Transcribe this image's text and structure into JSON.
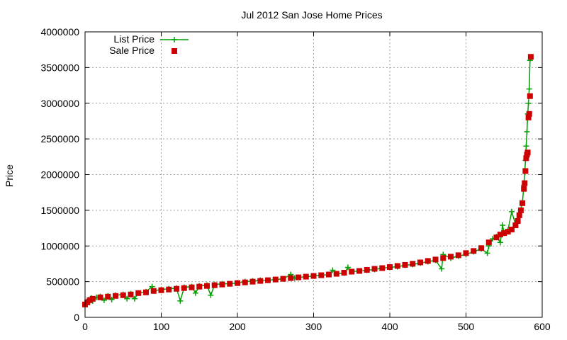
{
  "chart_data": {
    "type": "scatter",
    "title": "Jul 2012 San Jose Home Prices",
    "xlabel": "",
    "ylabel": "Price",
    "xlim": [
      0,
      600
    ],
    "ylim": [
      0,
      4000000
    ],
    "x_ticks": [
      0,
      100,
      200,
      300,
      400,
      500,
      600
    ],
    "y_ticks": [
      0,
      500000,
      1000000,
      1500000,
      2000000,
      2500000,
      3000000,
      3500000,
      4000000
    ],
    "x_tick_labels": [
      "0",
      "100",
      "200",
      "300",
      "400",
      "500",
      "600"
    ],
    "y_tick_labels": [
      "0",
      "500000",
      "1000000",
      "1500000",
      "2000000",
      "2500000",
      "3000000",
      "3500000",
      "4000000"
    ],
    "grid": true,
    "legend_position": "top-left",
    "series": [
      {
        "name": "List Price",
        "style": "linespoints-plus",
        "color": "#00a000",
        "points": [
          [
            0,
            180000
          ],
          [
            2,
            210000
          ],
          [
            5,
            250000
          ],
          [
            8,
            270000
          ],
          [
            10,
            230000
          ],
          [
            15,
            280000
          ],
          [
            20,
            290000
          ],
          [
            25,
            240000
          ],
          [
            30,
            300000
          ],
          [
            35,
            250000
          ],
          [
            40,
            310000
          ],
          [
            50,
            320000
          ],
          [
            55,
            260000
          ],
          [
            60,
            330000
          ],
          [
            65,
            260000
          ],
          [
            70,
            340000
          ],
          [
            80,
            360000
          ],
          [
            88,
            430000
          ],
          [
            90,
            370000
          ],
          [
            100,
            390000
          ],
          [
            110,
            400000
          ],
          [
            120,
            410000
          ],
          [
            125,
            230000
          ],
          [
            130,
            420000
          ],
          [
            140,
            430000
          ],
          [
            145,
            340000
          ],
          [
            150,
            440000
          ],
          [
            160,
            450000
          ],
          [
            165,
            310000
          ],
          [
            170,
            460000
          ],
          [
            180,
            470000
          ],
          [
            190,
            470000
          ],
          [
            200,
            480000
          ],
          [
            210,
            500000
          ],
          [
            220,
            510000
          ],
          [
            230,
            520000
          ],
          [
            240,
            520000
          ],
          [
            250,
            530000
          ],
          [
            260,
            540000
          ],
          [
            270,
            600000
          ],
          [
            275,
            550000
          ],
          [
            280,
            560000
          ],
          [
            290,
            570000
          ],
          [
            300,
            580000
          ],
          [
            310,
            590000
          ],
          [
            320,
            600000
          ],
          [
            325,
            660000
          ],
          [
            330,
            610000
          ],
          [
            340,
            620000
          ],
          [
            345,
            700000
          ],
          [
            350,
            640000
          ],
          [
            360,
            650000
          ],
          [
            370,
            660000
          ],
          [
            380,
            670000
          ],
          [
            390,
            690000
          ],
          [
            400,
            700000
          ],
          [
            410,
            710000
          ],
          [
            420,
            730000
          ],
          [
            430,
            740000
          ],
          [
            440,
            760000
          ],
          [
            450,
            780000
          ],
          [
            460,
            800000
          ],
          [
            468,
            680000
          ],
          [
            470,
            880000
          ],
          [
            480,
            830000
          ],
          [
            490,
            860000
          ],
          [
            500,
            880000
          ],
          [
            510,
            920000
          ],
          [
            520,
            960000
          ],
          [
            528,
            900000
          ],
          [
            530,
            1000000
          ],
          [
            535,
            1100000
          ],
          [
            540,
            1130000
          ],
          [
            545,
            1050000
          ],
          [
            548,
            1290000
          ],
          [
            550,
            1180000
          ],
          [
            555,
            1220000
          ],
          [
            560,
            1480000
          ],
          [
            565,
            1300000
          ],
          [
            570,
            1460000
          ],
          [
            574,
            1600000
          ],
          [
            576,
            1850000
          ],
          [
            578,
            2200000
          ],
          [
            579,
            2400000
          ],
          [
            580,
            2600000
          ],
          [
            581,
            2850000
          ],
          [
            582,
            3000000
          ],
          [
            583,
            3200000
          ],
          [
            584,
            3600000
          ]
        ]
      },
      {
        "name": "Sale Price",
        "style": "points-square",
        "color": "#cc0000",
        "points": [
          [
            0,
            180000
          ],
          [
            3,
            210000
          ],
          [
            6,
            240000
          ],
          [
            10,
            260000
          ],
          [
            20,
            280000
          ],
          [
            30,
            290000
          ],
          [
            40,
            300000
          ],
          [
            50,
            310000
          ],
          [
            60,
            320000
          ],
          [
            70,
            340000
          ],
          [
            80,
            350000
          ],
          [
            90,
            370000
          ],
          [
            100,
            380000
          ],
          [
            110,
            390000
          ],
          [
            120,
            400000
          ],
          [
            130,
            410000
          ],
          [
            140,
            420000
          ],
          [
            150,
            430000
          ],
          [
            160,
            440000
          ],
          [
            170,
            450000
          ],
          [
            180,
            460000
          ],
          [
            190,
            470000
          ],
          [
            200,
            480000
          ],
          [
            210,
            490000
          ],
          [
            220,
            500000
          ],
          [
            230,
            510000
          ],
          [
            240,
            520000
          ],
          [
            250,
            530000
          ],
          [
            260,
            540000
          ],
          [
            270,
            550000
          ],
          [
            280,
            560000
          ],
          [
            290,
            570000
          ],
          [
            300,
            580000
          ],
          [
            310,
            590000
          ],
          [
            320,
            600000
          ],
          [
            330,
            610000
          ],
          [
            340,
            625000
          ],
          [
            350,
            640000
          ],
          [
            360,
            650000
          ],
          [
            370,
            665000
          ],
          [
            380,
            680000
          ],
          [
            390,
            690000
          ],
          [
            400,
            705000
          ],
          [
            410,
            720000
          ],
          [
            420,
            735000
          ],
          [
            430,
            750000
          ],
          [
            440,
            770000
          ],
          [
            450,
            790000
          ],
          [
            460,
            810000
          ],
          [
            470,
            830000
          ],
          [
            480,
            850000
          ],
          [
            490,
            870000
          ],
          [
            500,
            900000
          ],
          [
            510,
            930000
          ],
          [
            520,
            970000
          ],
          [
            530,
            1050000
          ],
          [
            540,
            1120000
          ],
          [
            545,
            1160000
          ],
          [
            550,
            1180000
          ],
          [
            555,
            1200000
          ],
          [
            560,
            1230000
          ],
          [
            565,
            1290000
          ],
          [
            568,
            1350000
          ],
          [
            570,
            1430000
          ],
          [
            572,
            1500000
          ],
          [
            574,
            1600000
          ],
          [
            576,
            1800000
          ],
          [
            577,
            1880000
          ],
          [
            578,
            2050000
          ],
          [
            579,
            2230000
          ],
          [
            580,
            2280000
          ],
          [
            581,
            2310000
          ],
          [
            582,
            2800000
          ],
          [
            583,
            2850000
          ],
          [
            584,
            3100000
          ],
          [
            585,
            3650000
          ]
        ]
      }
    ]
  }
}
